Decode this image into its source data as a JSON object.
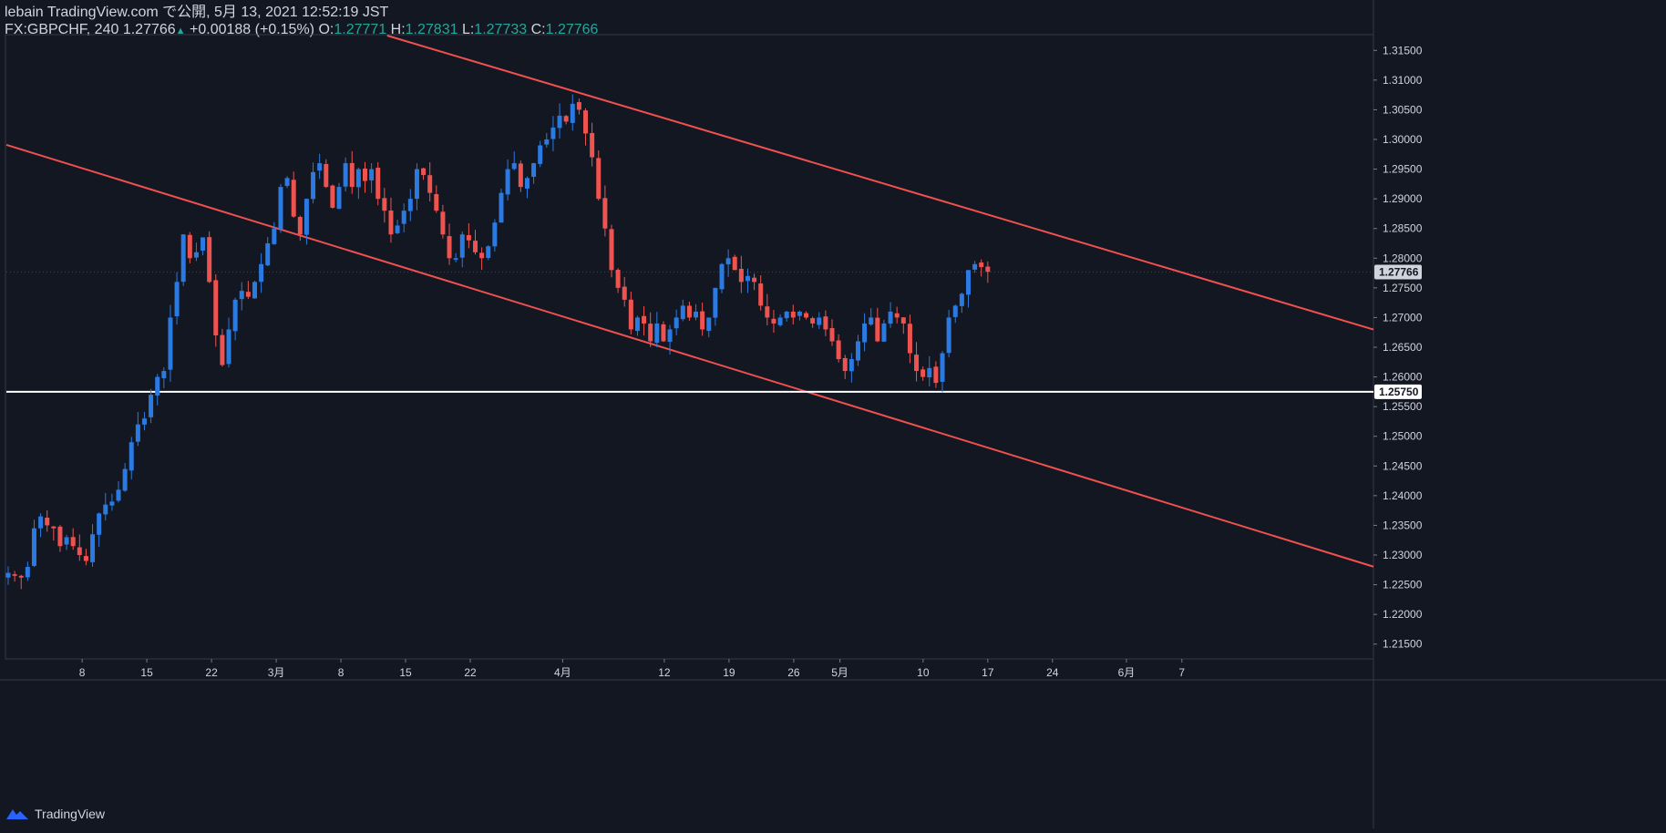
{
  "header": {
    "line1": "lebain TradingView.com で公開, 5月 13, 2021 12:52:19 JST",
    "symbol": "FX:GBPCHF, 240",
    "last": "1.27766",
    "change_arrow": "▲",
    "change": "+0.00188 (+0.15%)",
    "o_label": "O:",
    "o_value": "1.27771",
    "h_label": "H:",
    "h_value": "1.27831",
    "l_label": "L:",
    "l_value": "1.27733",
    "c_label": "C:",
    "c_value": "1.27766"
  },
  "footer": {
    "brand": "TradingView"
  },
  "colors": {
    "background": "#131722",
    "up": "#2a7ae2",
    "down": "#ef5350",
    "trendline": "#f0514f",
    "support": "#ffffff",
    "text": "#d1d4dc"
  },
  "chart_data": {
    "type": "candlestick",
    "symbol": "FX:GBPCHF",
    "interval": "240",
    "ylim": [
      1.2125,
      1.3175
    ],
    "y_ticks": [
      "1.31500",
      "1.31000",
      "1.30500",
      "1.30000",
      "1.29500",
      "1.29000",
      "1.28500",
      "1.28000",
      "1.27500",
      "1.27000",
      "1.26500",
      "1.26000",
      "1.25500",
      "1.25000",
      "1.24500",
      "1.24000",
      "1.23500",
      "1.23000",
      "1.22500",
      "1.22000",
      "1.21500"
    ],
    "x_ticks": [
      {
        "label": "8",
        "day": 8
      },
      {
        "label": "15",
        "day": 15
      },
      {
        "label": "22",
        "day": 22
      },
      {
        "label": "3月",
        "day": 29
      },
      {
        "label": "8",
        "day": 36
      },
      {
        "label": "15",
        "day": 43
      },
      {
        "label": "22",
        "day": 50
      },
      {
        "label": "4月",
        "day": 60
      },
      {
        "label": "12",
        "day": 71
      },
      {
        "label": "19",
        "day": 78
      },
      {
        "label": "26",
        "day": 85
      },
      {
        "label": "5月",
        "day": 90
      },
      {
        "label": "10",
        "day": 99
      },
      {
        "label": "17",
        "day": 106
      },
      {
        "label": "24",
        "day": 113
      },
      {
        "label": "6月",
        "day": 121
      },
      {
        "label": "7",
        "day": 127
      }
    ],
    "last_price": "1.27766",
    "support_level": "1.25750",
    "trendlines": [
      {
        "name": "upper channel",
        "points": [
          [
            41,
            1.3175
          ],
          [
            127,
            1.2776
          ]
        ]
      },
      {
        "name": "lower channel",
        "points": [
          [
            0,
            1.299
          ],
          [
            127,
            1.238
          ]
        ]
      }
    ],
    "price_path": [
      [
        0,
        1.227
      ],
      [
        2,
        1.2265
      ],
      [
        4,
        1.2262
      ],
      [
        6,
        1.228
      ],
      [
        7,
        1.2345
      ],
      [
        9,
        1.2365
      ],
      [
        11,
        1.235
      ],
      [
        13,
        1.2345
      ],
      [
        15,
        1.2315
      ],
      [
        17,
        1.233
      ],
      [
        19,
        1.2315
      ],
      [
        21,
        1.23
      ],
      [
        22,
        1.229
      ],
      [
        24,
        1.2335
      ],
      [
        26,
        1.237
      ],
      [
        28,
        1.2385
      ],
      [
        30,
        1.239
      ],
      [
        31,
        1.241
      ],
      [
        33,
        1.2445
      ],
      [
        35,
        1.249
      ],
      [
        36,
        1.252
      ],
      [
        38,
        1.253
      ],
      [
        40,
        1.257
      ],
      [
        42,
        1.26
      ],
      [
        44,
        1.261
      ],
      [
        45,
        1.27
      ],
      [
        46,
        1.276
      ],
      [
        47,
        1.284
      ],
      [
        48,
        1.28
      ],
      [
        49,
        1.281
      ],
      [
        50,
        1.2835
      ],
      [
        51,
        1.276
      ],
      [
        52,
        1.267
      ],
      [
        53,
        1.262
      ],
      [
        54,
        1.268
      ],
      [
        55,
        1.273
      ],
      [
        56,
        1.2745
      ],
      [
        57,
        1.2735
      ],
      [
        58,
        1.276
      ],
      [
        59,
        1.279
      ],
      [
        60,
        1.2825
      ],
      [
        61,
        1.285
      ],
      [
        62,
        1.292
      ],
      [
        63,
        1.2935
      ],
      [
        64,
        1.287
      ],
      [
        65,
        1.284
      ],
      [
        66,
        1.29
      ],
      [
        67,
        1.2945
      ],
      [
        68,
        1.296
      ],
      [
        69,
        1.292
      ],
      [
        70,
        1.2885
      ],
      [
        71,
        1.292
      ],
      [
        72,
        1.296
      ],
      [
        73,
        1.292
      ],
      [
        74,
        1.295
      ],
      [
        75,
        1.293
      ],
      [
        76,
        1.295
      ],
      [
        77,
        1.29
      ],
      [
        78,
        1.288
      ],
      [
        79,
        1.284
      ],
      [
        80,
        1.2855
      ],
      [
        81,
        1.288
      ],
      [
        82,
        1.29
      ],
      [
        83,
        1.295
      ],
      [
        84,
        1.294
      ],
      [
        85,
        1.291
      ],
      [
        86,
        1.288
      ],
      [
        87,
        1.284
      ],
      [
        88,
        1.28
      ],
      [
        89,
        1.28
      ],
      [
        90,
        1.284
      ],
      [
        91,
        1.283
      ],
      [
        92,
        1.281
      ],
      [
        93,
        1.28
      ],
      [
        94,
        1.282
      ],
      [
        95,
        1.286
      ],
      [
        96,
        1.291
      ],
      [
        97,
        1.295
      ],
      [
        98,
        1.296
      ],
      [
        99,
        1.292
      ],
      [
        100,
        1.2935
      ],
      [
        101,
        1.296
      ],
      [
        102,
        1.299
      ],
      [
        103,
        1.3
      ],
      [
        104,
        1.302
      ],
      [
        105,
        1.304
      ],
      [
        106,
        1.303
      ],
      [
        107,
        1.306
      ],
      [
        108,
        1.305
      ],
      [
        109,
        1.301
      ],
      [
        110,
        1.297
      ],
      [
        111,
        1.29
      ],
      [
        112,
        1.285
      ],
      [
        113,
        1.278
      ],
      [
        114,
        1.275
      ],
      [
        115,
        1.273
      ],
      [
        116,
        1.268
      ],
      [
        117,
        1.27
      ],
      [
        118,
        1.269
      ],
      [
        119,
        1.266
      ],
      [
        120,
        1.269
      ],
      [
        121,
        1.266
      ],
      [
        122,
        1.268
      ],
      [
        123,
        1.27
      ],
      [
        124,
        1.272
      ],
      [
        125,
        1.27
      ],
      [
        126,
        1.271
      ],
      [
        127,
        1.268
      ],
      [
        128,
        1.27
      ],
      [
        129,
        1.275
      ],
      [
        130,
        1.279
      ],
      [
        131,
        1.28
      ],
      [
        132,
        1.278
      ],
      [
        133,
        1.276
      ],
      [
        134,
        1.277
      ],
      [
        135,
        1.276
      ],
      [
        136,
        1.272
      ],
      [
        137,
        1.27
      ],
      [
        138,
        1.269
      ],
      [
        139,
        1.27
      ],
      [
        140,
        1.271
      ],
      [
        141,
        1.27
      ],
      [
        142,
        1.271
      ],
      [
        143,
        1.27
      ],
      [
        144,
        1.269
      ],
      [
        145,
        1.27
      ],
      [
        146,
        1.268
      ],
      [
        147,
        1.266
      ],
      [
        148,
        1.263
      ],
      [
        149,
        1.261
      ],
      [
        150,
        1.263
      ],
      [
        151,
        1.266
      ],
      [
        152,
        1.269
      ],
      [
        153,
        1.27
      ],
      [
        154,
        1.266
      ],
      [
        155,
        1.269
      ],
      [
        156,
        1.271
      ],
      [
        157,
        1.27
      ],
      [
        158,
        1.269
      ],
      [
        159,
        1.264
      ],
      [
        160,
        1.261
      ],
      [
        161,
        1.26
      ],
      [
        162,
        1.2615
      ],
      [
        163,
        1.259
      ],
      [
        164,
        1.264
      ],
      [
        165,
        1.27
      ],
      [
        166,
        1.272
      ],
      [
        167,
        1.274
      ],
      [
        168,
        1.278
      ],
      [
        169,
        1.279
      ],
      [
        170,
        1.2785
      ],
      [
        171,
        1.2777
      ]
    ],
    "path_x_map": "path index i maps to day = i * 106 / 171 (last candle sits just before '17')",
    "grid": false
  }
}
